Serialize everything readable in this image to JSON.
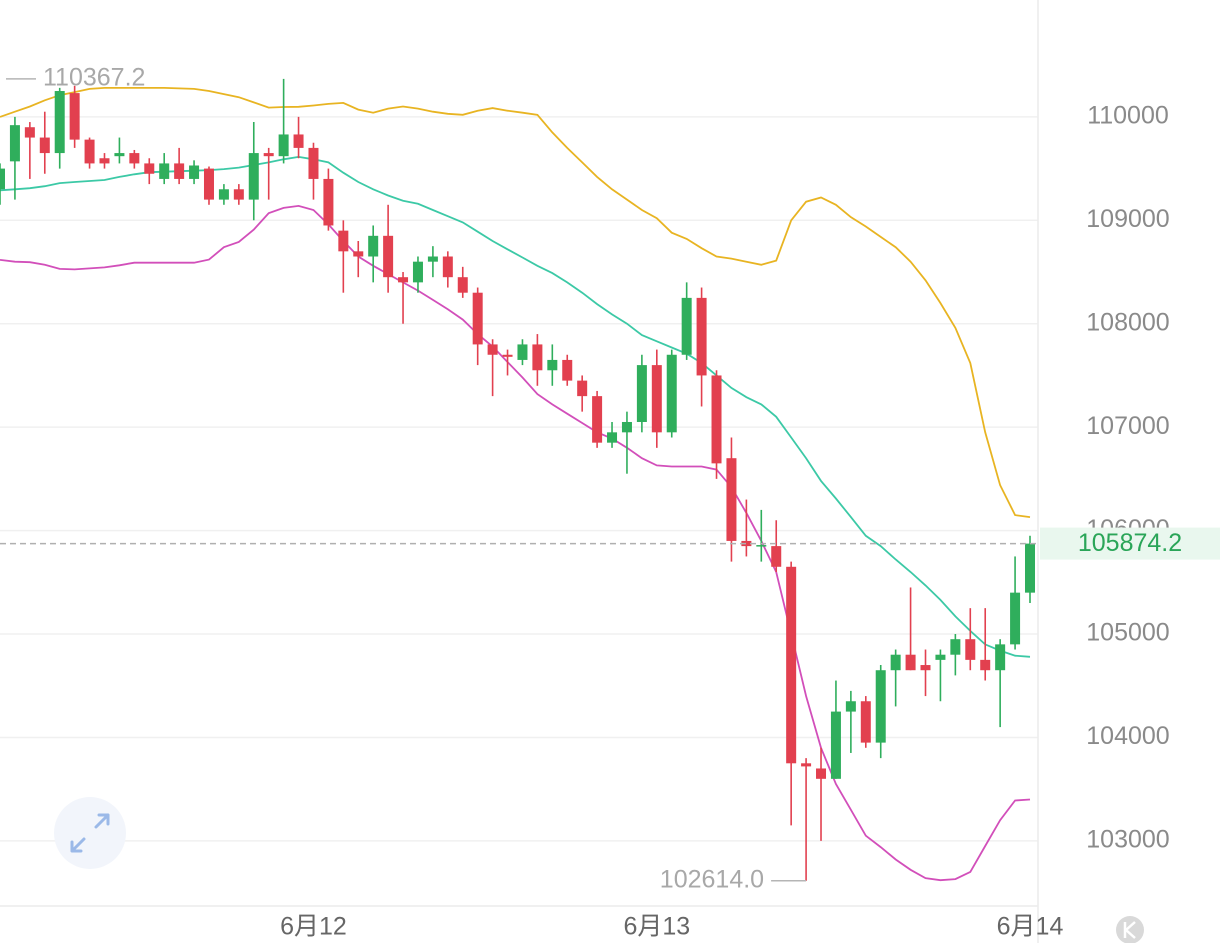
{
  "chart_data": {
    "type": "candlestick",
    "categories": [
      null,
      null,
      null,
      null,
      null,
      null,
      null,
      null,
      null,
      null,
      null,
      null,
      null,
      null,
      null,
      null,
      null,
      null,
      null,
      null,
      null,
      "6月12",
      null,
      null,
      null,
      null,
      null,
      null,
      null,
      null,
      null,
      null,
      null,
      null,
      null,
      null,
      null,
      null,
      null,
      null,
      null,
      null,
      null,
      null,
      "6月13",
      null,
      null,
      null,
      null,
      null,
      null,
      null,
      null,
      null,
      null,
      null,
      null,
      null,
      null,
      null,
      null,
      null,
      null,
      null,
      null,
      null,
      null,
      null,
      null,
      "6月14"
    ],
    "open": [
      109300,
      109570,
      109900,
      109800,
      109650,
      110230,
      109780,
      109600,
      109620,
      109650,
      109550,
      109400,
      109550,
      109400,
      109500,
      109200,
      109300,
      109200,
      109650,
      109620,
      109830,
      109700,
      109400,
      108900,
      108700,
      108650,
      108850,
      108450,
      108400,
      108600,
      108650,
      108450,
      108300,
      107800,
      107700,
      107650,
      107800,
      107550,
      107650,
      107450,
      107300,
      106850,
      106950,
      107050,
      107600,
      106950,
      107700,
      108250,
      107500,
      106700,
      105900,
      105850,
      105850,
      105650,
      103750,
      103700,
      103600,
      104250,
      104350,
      103950,
      104650,
      104800,
      104700,
      104750,
      104800,
      104950,
      104750,
      104650,
      104900,
      105400
    ],
    "high": [
      109550,
      110000,
      109950,
      110050,
      110280,
      110300,
      109800,
      109650,
      109800,
      109680,
      109600,
      109650,
      109700,
      109580,
      109520,
      109350,
      109350,
      109950,
      109700,
      110367.2,
      110000,
      109750,
      109500,
      109000,
      108800,
      108950,
      109150,
      108500,
      108650,
      108750,
      108700,
      108550,
      108350,
      107850,
      107750,
      107850,
      107900,
      107800,
      107700,
      107500,
      107350,
      107050,
      107150,
      107700,
      107750,
      107750,
      108400,
      108350,
      107550,
      106900,
      106300,
      106200,
      106100,
      105700,
      103800,
      103900,
      104550,
      104450,
      104400,
      104700,
      104850,
      105450,
      104850,
      104850,
      105000,
      105250,
      105250,
      104950,
      105750,
      105950
    ],
    "low": [
      109150,
      109200,
      109400,
      109450,
      109500,
      109700,
      109500,
      109500,
      109550,
      109500,
      109350,
      109350,
      109350,
      109350,
      109150,
      109150,
      109150,
      109000,
      109200,
      109550,
      109600,
      109200,
      108900,
      108300,
      108450,
      108400,
      108300,
      108000,
      108300,
      108450,
      108350,
      108250,
      107600,
      107300,
      107500,
      107600,
      107400,
      107400,
      107400,
      107150,
      106800,
      106800,
      106550,
      106950,
      106800,
      106900,
      107650,
      107200,
      106500,
      105700,
      105750,
      105700,
      105600,
      103150,
      102614.0,
      103000,
      103600,
      103850,
      103900,
      103800,
      104300,
      104650,
      104400,
      104350,
      104600,
      104650,
      104550,
      104100,
      104850,
      105300
    ],
    "close": [
      109500,
      109920,
      109800,
      109650,
      110250,
      109780,
      109550,
      109550,
      109650,
      109550,
      109450,
      109550,
      109400,
      109530,
      109200,
      109300,
      109200,
      109650,
      109620,
      109830,
      109700,
      109400,
      108950,
      108700,
      108650,
      108850,
      108450,
      108400,
      108600,
      108650,
      108450,
      108300,
      107800,
      107700,
      107680,
      107800,
      107550,
      107650,
      107450,
      107300,
      106850,
      106950,
      107050,
      107600,
      106950,
      107700,
      108250,
      107500,
      106650,
      105900,
      105850,
      105860,
      105650,
      103750,
      103720,
      103600,
      104250,
      104350,
      103950,
      104650,
      104800,
      104650,
      104650,
      104800,
      104950,
      104750,
      104650,
      104900,
      105400,
      105874.2
    ],
    "up_color": "#2fae5c",
    "down_color": "#e2404f",
    "bands": [
      {
        "color": "#e8b422",
        "values": [
          110000,
          110050,
          110100,
          110160,
          110210,
          110240,
          110270,
          110280,
          110280,
          110280,
          110280,
          110280,
          110275,
          110270,
          110250,
          110220,
          110190,
          110140,
          110090,
          110095,
          110097,
          110110,
          110125,
          110135,
          110070,
          110040,
          110080,
          110100,
          110080,
          110050,
          110030,
          110020,
          110060,
          110085,
          110060,
          110040,
          110020,
          109850,
          109700,
          109560,
          109420,
          109300,
          109200,
          109100,
          109020,
          108880,
          108820,
          108730,
          108650,
          108630,
          108600,
          108570,
          108610,
          109000,
          109180,
          109220,
          109150,
          109030,
          108940,
          108840,
          108740,
          108600,
          108420,
          108200,
          107960,
          107620,
          106950,
          106440,
          106150,
          106130
        ]
      },
      {
        "color": "#3cc9a6",
        "values": [
          109290,
          109300,
          109310,
          109330,
          109360,
          109370,
          109380,
          109390,
          109420,
          109445,
          109465,
          109470,
          109475,
          109480,
          109485,
          109495,
          109510,
          109535,
          109560,
          109590,
          109613,
          109590,
          109560,
          109460,
          109370,
          109300,
          109240,
          109190,
          109160,
          109100,
          109040,
          108980,
          108890,
          108800,
          108720,
          108640,
          108560,
          108490,
          108400,
          108300,
          108190,
          108090,
          108000,
          107890,
          107830,
          107770,
          107710,
          107620,
          107500,
          107380,
          107290,
          107220,
          107100,
          106900,
          106700,
          106480,
          106310,
          106130,
          105950,
          105850,
          105720,
          105600,
          105470,
          105330,
          105170,
          105030,
          104900,
          104840,
          104790,
          104780
        ]
      },
      {
        "color": "#d24fba",
        "values": [
          108617,
          108600,
          108595,
          108570,
          108530,
          108525,
          108535,
          108545,
          108565,
          108590,
          108590,
          108590,
          108590,
          108590,
          108620,
          108740,
          108790,
          108910,
          109070,
          109120,
          109139,
          109100,
          108960,
          108800,
          108650,
          108560,
          108480,
          108400,
          108320,
          108230,
          108140,
          108040,
          107900,
          107780,
          107630,
          107480,
          107320,
          107220,
          107130,
          107040,
          106950,
          106890,
          106800,
          106700,
          106630,
          106620,
          106620,
          106620,
          106590,
          106420,
          106170,
          105900,
          105600,
          105000,
          104400,
          103900,
          103550,
          103300,
          103050,
          102940,
          102820,
          102720,
          102640,
          102620,
          102630,
          102700,
          102950,
          103200,
          103390,
          103400
        ]
      }
    ],
    "ylim": [
      102380,
      111130
    ],
    "yticks": [
      103000,
      104000,
      105000,
      106000,
      107000,
      108000,
      109000,
      110000
    ],
    "grid": true,
    "high_label": {
      "value": 110367.2,
      "label": "110367.2"
    },
    "low_label": {
      "value": 102614.0,
      "label": "102614.0"
    },
    "last_price": {
      "value": 105874.2,
      "label": "105874.2"
    }
  }
}
